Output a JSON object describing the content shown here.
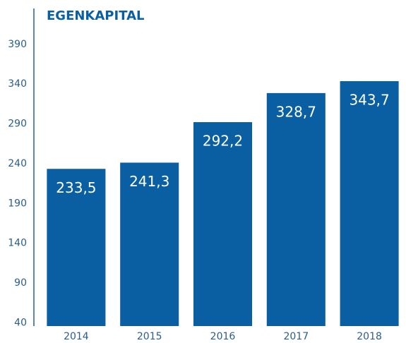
{
  "chart_data": {
    "type": "bar",
    "title": "EGENKAPITAL",
    "categories": [
      "2014",
      "2015",
      "2016",
      "2017",
      "2018"
    ],
    "values": [
      233.5,
      241.3,
      292.2,
      328.7,
      343.7
    ],
    "value_labels": [
      "233,5",
      "241,3",
      "292,2",
      "328,7",
      "343,7"
    ],
    "color": "#0a5fa2",
    "ylim": [
      36,
      435
    ],
    "yticks": [
      40,
      90,
      140,
      190,
      240,
      290,
      340,
      390
    ],
    "grid": false
  }
}
